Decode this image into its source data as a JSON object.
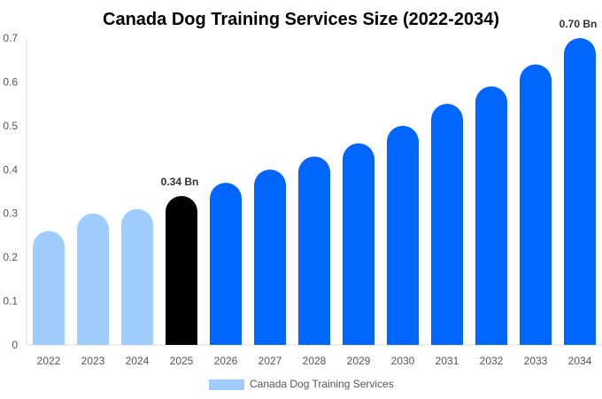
{
  "chart_data": {
    "type": "bar",
    "title": "Canada Dog Training Services Size (2022-2034)",
    "categories": [
      "2022",
      "2023",
      "2024",
      "2025",
      "2026",
      "2027",
      "2028",
      "2029",
      "2030",
      "2031",
      "2032",
      "2033",
      "2034"
    ],
    "series": [
      {
        "name": "Canada Dog Training Services",
        "values": [
          0.26,
          0.3,
          0.31,
          0.34,
          0.37,
          0.4,
          0.43,
          0.46,
          0.5,
          0.55,
          0.59,
          0.64,
          0.7
        ]
      }
    ],
    "data_labels": [
      {
        "category": "2025",
        "text": "0.34 Bn"
      },
      {
        "category": "2034",
        "text": "0.70 Bn"
      }
    ],
    "ylim": [
      0,
      0.7
    ],
    "yticks": [
      "0",
      "0.1",
      "0.2",
      "0.3",
      "0.4",
      "0.5",
      "0.6",
      "0.7"
    ],
    "grid": false,
    "legend": "bottom",
    "colors": {
      "historic": "#9fcdfd",
      "current": "#000000",
      "forecast": "#0066ff"
    },
    "color_by_category": [
      "historic",
      "historic",
      "historic",
      "current",
      "forecast",
      "forecast",
      "forecast",
      "forecast",
      "forecast",
      "forecast",
      "forecast",
      "forecast",
      "forecast"
    ]
  }
}
